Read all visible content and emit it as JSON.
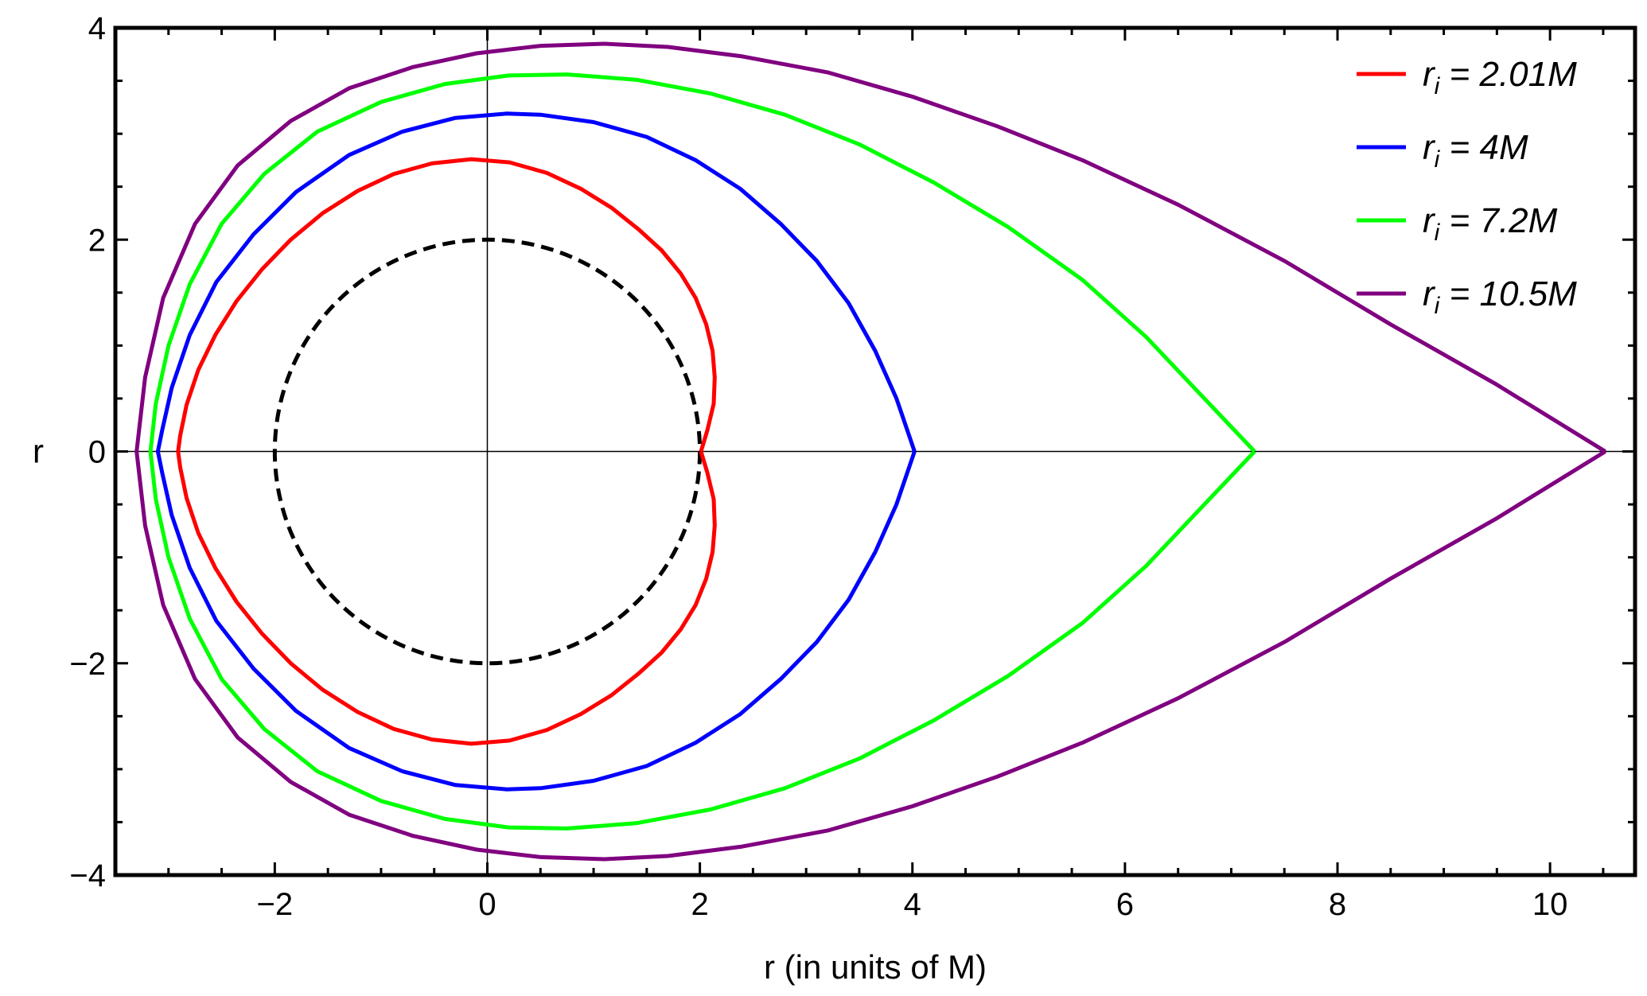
{
  "chart_data": {
    "type": "line",
    "title": "",
    "xlabel": "r (in units of M)",
    "ylabel": "r",
    "xlim": [
      -3.5,
      10.8
    ],
    "ylim": [
      -4,
      4
    ],
    "xticks": [
      -2,
      0,
      2,
      4,
      6,
      8,
      10
    ],
    "yticks": [
      -4,
      -2,
      0,
      2,
      4
    ],
    "xtick_labels": [
      "−2",
      "0",
      "2",
      "4",
      "6",
      "8",
      "10"
    ],
    "ytick_labels": [
      "−4",
      "−2",
      "0",
      "2",
      "4"
    ],
    "grid": false,
    "origin_axes": true,
    "legend_position": "top-right",
    "horizon": {
      "radius": 2,
      "style": "dashed",
      "color": "#000000"
    },
    "series": [
      {
        "name": "r",
        "name_subscript": "i",
        "name_suffix": " = 2.01M",
        "color": "#ff0000",
        "x": [
          2.01,
          2.07,
          2.13,
          2.14,
          2.12,
          2.06,
          1.96,
          1.82,
          1.64,
          1.42,
          1.17,
          0.88,
          0.56,
          0.21,
          -0.15,
          -0.52,
          -0.88,
          -1.22,
          -1.55,
          -1.85,
          -2.12,
          -2.36,
          -2.56,
          -2.72,
          -2.83,
          -2.89,
          -2.91
        ],
        "y": [
          0.0,
          0.2,
          0.45,
          0.7,
          0.95,
          1.2,
          1.45,
          1.68,
          1.9,
          2.1,
          2.3,
          2.48,
          2.63,
          2.73,
          2.76,
          2.72,
          2.62,
          2.46,
          2.25,
          2.0,
          1.72,
          1.42,
          1.1,
          0.77,
          0.44,
          0.15,
          0.0
        ]
      },
      {
        "name": "r",
        "name_subscript": "i",
        "name_suffix": " = 4M",
        "color": "#0000ff",
        "x": [
          4.02,
          3.85,
          3.65,
          3.4,
          3.1,
          2.76,
          2.38,
          1.96,
          1.5,
          1.0,
          0.5,
          0.18,
          -0.3,
          -0.8,
          -1.3,
          -1.8,
          -2.2,
          -2.55,
          -2.8,
          -2.97,
          -3.06,
          -3.1
        ],
        "y": [
          0.0,
          0.5,
          0.95,
          1.4,
          1.8,
          2.15,
          2.48,
          2.75,
          2.97,
          3.11,
          3.18,
          3.19,
          3.15,
          3.02,
          2.8,
          2.45,
          2.05,
          1.6,
          1.1,
          0.6,
          0.2,
          0.0
        ]
      },
      {
        "name": "r",
        "name_subscript": "i",
        "name_suffix": " = 7.2M",
        "color": "#00ff00",
        "x": [
          7.22,
          6.7,
          6.2,
          5.6,
          4.9,
          4.2,
          3.5,
          2.8,
          2.1,
          1.4,
          0.75,
          0.2,
          -0.4,
          -1.0,
          -1.6,
          -2.1,
          -2.5,
          -2.8,
          -3.0,
          -3.12,
          -3.17
        ],
        "y": [
          0.0,
          0.55,
          1.08,
          1.62,
          2.12,
          2.54,
          2.9,
          3.18,
          3.38,
          3.51,
          3.56,
          3.55,
          3.47,
          3.3,
          3.02,
          2.62,
          2.15,
          1.58,
          1.0,
          0.45,
          0.0
        ]
      },
      {
        "name": "r",
        "name_subscript": "i",
        "name_suffix": " = 10.5M",
        "color": "#800080",
        "x": [
          10.52,
          9.5,
          8.5,
          7.5,
          6.5,
          5.6,
          4.8,
          4.0,
          3.2,
          2.4,
          1.7,
          1.1,
          0.5,
          -0.1,
          -0.7,
          -1.3,
          -1.85,
          -2.35,
          -2.75,
          -3.05,
          -3.22,
          -3.3
        ],
        "y": [
          0.0,
          0.63,
          1.2,
          1.8,
          2.33,
          2.75,
          3.07,
          3.35,
          3.58,
          3.73,
          3.82,
          3.85,
          3.83,
          3.76,
          3.63,
          3.43,
          3.12,
          2.7,
          2.15,
          1.45,
          0.7,
          0.0
        ]
      }
    ]
  }
}
